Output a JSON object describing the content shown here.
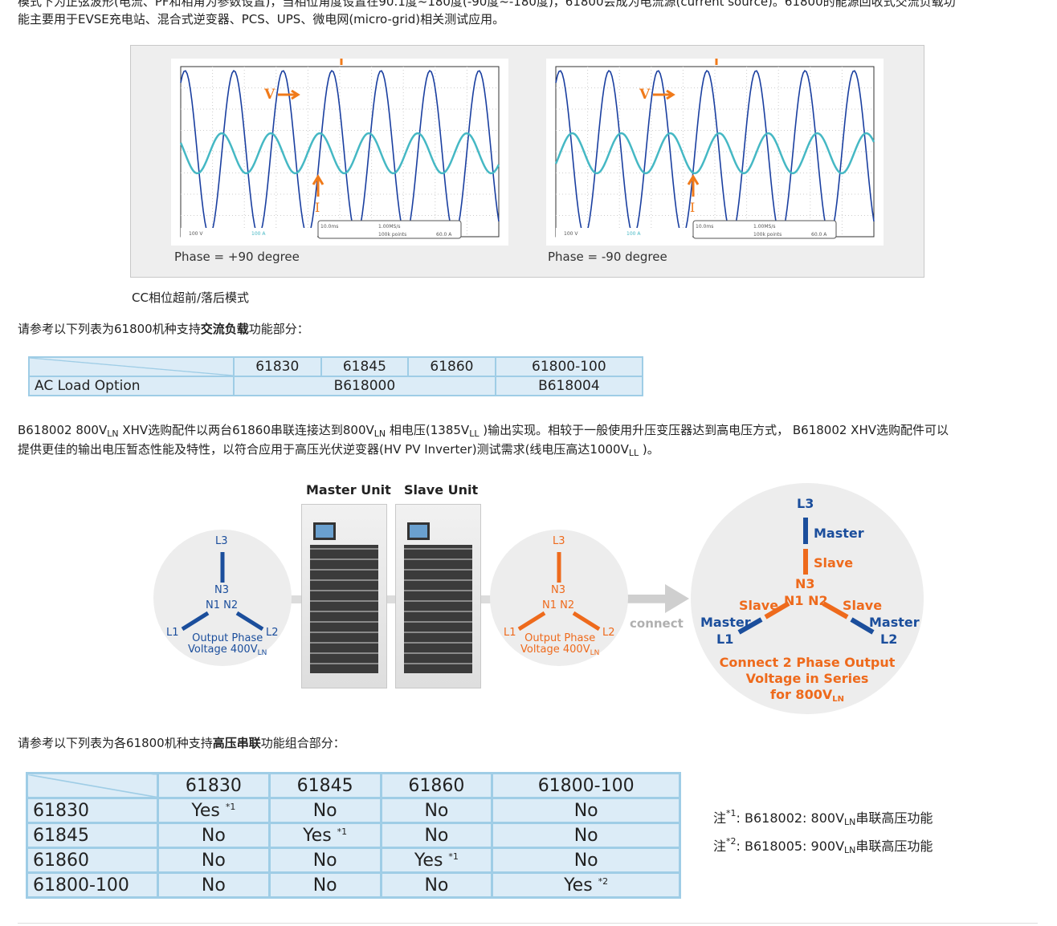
{
  "intro": {
    "line1": "模式下为正弦波形(电流、PF和相角为参数设置)，当相位角度设置在90.1度~180度(-90度~-180度)，61800会成为电流源(current source)。61800的能源回收式交流负载功",
    "line2": "能主要用于EVSE充电站、混合式逆变器、PCS、UPS、微电网(micro-grid)相关测试应用。"
  },
  "figure": {
    "scopes": [
      {
        "caption": "Phase = +90 degree",
        "v_label": "V",
        "i_label": "I",
        "status": [
          "100 V",
          "100 A",
          "10.0ms",
          "1.00MS/s",
          "100k points",
          "60.0 A"
        ]
      },
      {
        "caption": "Phase = -90 degree",
        "v_label": "V",
        "i_label": "I",
        "status": [
          "100 V",
          "100 A",
          "10.0ms",
          "1.00MS/s",
          "100k points",
          "60.0 A"
        ]
      }
    ],
    "caption": "CC相位超前/落后模式",
    "colors": {
      "voltage": "#1a3fa0",
      "current": "#45b8c4",
      "marker": "#f07a1a"
    }
  },
  "ac_load": {
    "intro_pre": "请参考以下列表为61800机种支持",
    "intro_bold": "交流负载",
    "intro_post": "功能部分：",
    "headers": [
      "61830",
      "61845",
      "61860",
      "61800-100"
    ],
    "row_label": "AC Load Option",
    "values": [
      "B618000",
      "B618004"
    ]
  },
  "xhv": {
    "line1": [
      "B618002 800V",
      "LN",
      " XHV选购配件以两台61860串联连接达到800V",
      "LN",
      " 相电压(1385V",
      "LL",
      " )输出实现。相较于一般使用升压变压器达到高电压方式， B618002 XHV选购配件可以"
    ],
    "line2": [
      "提供更佳的输出电压暂态性能及特性，以符合应用于高压光伏逆变器(HV PV Inverter)测试需求(线电压高达1000V",
      "LL",
      " )。"
    ]
  },
  "diagram": {
    "master_unit": "Master Unit",
    "slave_unit": "Slave Unit",
    "left": {
      "L3": "L3",
      "N3": "N3",
      "N1": "N1",
      "N2": "N2",
      "L1": "L1",
      "L2": "L2",
      "caption1": "Output Phase",
      "caption2": "Voltage 400V",
      "sub": "LN"
    },
    "connect": "connect",
    "right": {
      "L3": "L3",
      "master": "Master",
      "slave": "Slave",
      "N3": "N3",
      "N1": "N1",
      "N2": "N2",
      "L1": "L1",
      "L2": "L2",
      "caption1": "Connect 2 Phase Output",
      "caption2": "Voltage in Series",
      "caption3": "for 800V",
      "sub": "LN"
    },
    "colors": {
      "master": "#1b4e9c",
      "slave": "#ee6a1c"
    }
  },
  "series": {
    "intro_pre": "请参考以下列表为各61800机种支持",
    "intro_bold": "高压串联",
    "intro_post": "功能组合部分：",
    "headers": [
      "61830",
      "61845",
      "61860",
      "61800-100"
    ],
    "rows": [
      {
        "label": "61830",
        "cells": [
          [
            "Yes",
            "*1"
          ],
          [
            "No",
            ""
          ],
          [
            "No",
            ""
          ],
          [
            "No",
            ""
          ]
        ]
      },
      {
        "label": "61845",
        "cells": [
          [
            "No",
            ""
          ],
          [
            "Yes",
            "*1"
          ],
          [
            "No",
            ""
          ],
          [
            "No",
            ""
          ]
        ]
      },
      {
        "label": "61860",
        "cells": [
          [
            "No",
            ""
          ],
          [
            "No",
            ""
          ],
          [
            "Yes",
            "*1"
          ],
          [
            "No",
            ""
          ]
        ]
      },
      {
        "label": "61800-100",
        "cells": [
          [
            "No",
            ""
          ],
          [
            "No",
            ""
          ],
          [
            "No",
            ""
          ],
          [
            "Yes",
            "*2"
          ]
        ]
      }
    ],
    "notes": [
      {
        "prefix": "注",
        "mark": "*1",
        "text": ": B618002: 800V",
        "sub": "LN",
        "suffix": "串联高压功能"
      },
      {
        "prefix": "注",
        "mark": "*2",
        "text": ": B618005: 900V",
        "sub": "LN",
        "suffix": "串联高压功能"
      }
    ]
  }
}
